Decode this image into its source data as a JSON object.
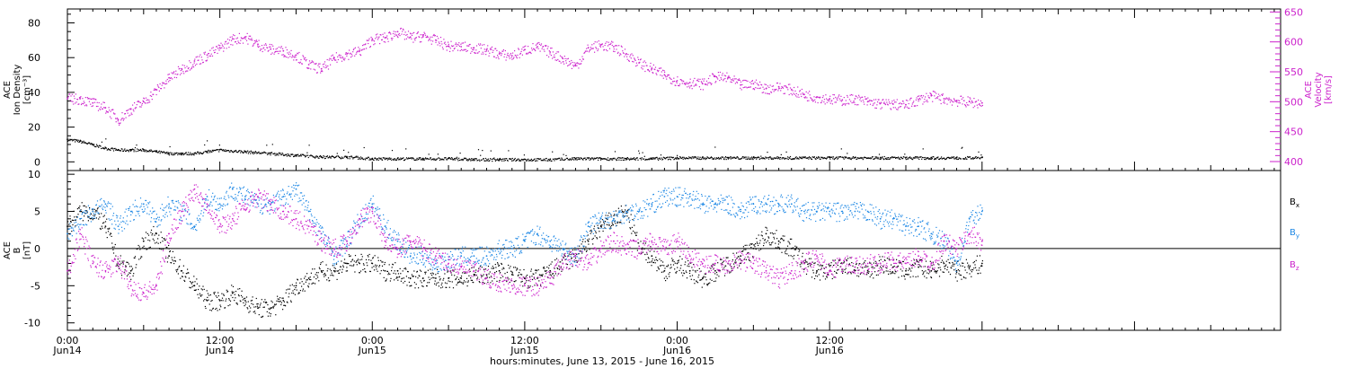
{
  "chart_data": [
    {
      "type": "scatter",
      "panel": "top",
      "ylabel_left_lines": [
        "ACE",
        "Ion Density",
        "[cm⁻³]"
      ],
      "ylabel_right_lines": [
        "ACE",
        "Velocity",
        "[km/s]"
      ],
      "ylim_left": [
        -5,
        88
      ],
      "ylim_right": [
        385,
        655
      ],
      "yticks_left": [
        "0",
        "20",
        "40",
        "60",
        "80"
      ],
      "yticks_right": [
        "400",
        "450",
        "500",
        "550",
        "600",
        "650"
      ],
      "grid": false,
      "series": [
        {
          "name": "",
          "axis": "left",
          "color": "#000000",
          "x": [
            0,
            1,
            2,
            3,
            4,
            5,
            6,
            7,
            8,
            9,
            10,
            11,
            12,
            14,
            16,
            18,
            20,
            22,
            24,
            26,
            28,
            30,
            32,
            34,
            36,
            38,
            40,
            42,
            44,
            46,
            48,
            50,
            52,
            54,
            56,
            58,
            60,
            62,
            64,
            66,
            68,
            70,
            72
          ],
          "y": [
            13,
            12,
            10,
            8,
            7,
            7,
            7,
            6,
            5,
            5,
            5,
            6,
            7,
            6,
            5,
            4,
            3,
            3,
            2,
            2,
            2,
            2,
            1.5,
            1.5,
            1.5,
            1.5,
            2,
            2,
            2,
            2,
            2.5,
            2.5,
            2.5,
            2.5,
            2.5,
            2.5,
            2.5,
            2.5,
            2.5,
            2.5,
            2.5,
            2.5,
            2.5
          ]
        },
        {
          "name": "",
          "axis": "right",
          "color": "#cc22cc",
          "x": [
            0,
            1,
            2,
            3,
            4,
            5,
            6,
            7,
            8,
            9,
            10,
            11,
            12,
            13,
            14,
            15,
            16,
            17,
            18,
            19,
            20,
            21,
            22,
            23,
            24,
            25,
            26,
            27,
            28,
            29,
            30,
            31,
            32,
            33,
            34,
            35,
            36,
            37,
            38,
            39,
            40,
            41,
            42,
            43,
            44,
            45,
            46,
            47,
            48,
            49,
            50,
            51,
            52,
            53,
            54,
            55,
            56,
            57,
            58,
            59,
            60,
            61,
            62,
            63,
            64,
            65,
            66,
            67,
            68,
            69,
            70,
            71,
            72
          ],
          "y": [
            505,
            505,
            498,
            490,
            470,
            488,
            500,
            520,
            540,
            555,
            568,
            578,
            590,
            605,
            608,
            596,
            588,
            585,
            578,
            562,
            555,
            573,
            580,
            585,
            605,
            607,
            617,
            608,
            610,
            603,
            593,
            592,
            590,
            587,
            580,
            577,
            587,
            592,
            583,
            572,
            560,
            590,
            595,
            592,
            580,
            565,
            555,
            545,
            535,
            532,
            530,
            542,
            540,
            528,
            530,
            522,
            525,
            520,
            512,
            508,
            505,
            503,
            505,
            500,
            497,
            496,
            495,
            504,
            510,
            505,
            502,
            500,
            498
          ]
        }
      ]
    },
    {
      "type": "scatter",
      "panel": "bottom",
      "ylabel_left_lines": [
        "ACE",
        "B",
        "[nT]"
      ],
      "ylim": [
        -11,
        10.5
      ],
      "yticks": [
        "-10",
        "-5",
        "0",
        "5",
        "10"
      ],
      "grid": false,
      "zero_line": true,
      "series": [
        {
          "name": "Bx",
          "color": "#000000",
          "x": [
            0,
            1,
            2,
            3,
            4,
            5,
            6,
            7,
            8,
            9,
            10,
            11,
            12,
            13,
            14,
            15,
            16,
            17,
            18,
            19,
            20,
            21,
            22,
            23,
            24,
            25,
            26,
            27,
            28,
            29,
            30,
            31,
            32,
            33,
            34,
            35,
            36,
            37,
            38,
            39,
            40,
            41,
            42,
            43,
            44,
            45,
            46,
            47,
            48,
            49,
            50,
            51,
            52,
            53,
            54,
            55,
            56,
            57,
            58,
            59,
            60,
            61,
            62,
            63,
            64,
            65,
            66,
            67,
            68,
            69,
            70,
            71,
            72
          ],
          "y": [
            3,
            5,
            5,
            3,
            -2,
            -3,
            1,
            2,
            -1,
            -3,
            -5,
            -7,
            -7,
            -6,
            -7,
            -8,
            -8,
            -7,
            -5,
            -4,
            -3,
            -3,
            -2,
            -2,
            -2,
            -3,
            -3,
            -4,
            -4,
            -4,
            -4,
            -4,
            -3.5,
            -3.5,
            -3,
            -3.5,
            -4,
            -4,
            -3,
            -2,
            -1,
            1,
            3,
            4,
            5,
            0,
            -1,
            -3,
            -2,
            -3,
            -4,
            -3,
            -2,
            -1,
            0,
            2,
            1,
            0,
            -2,
            -3,
            -3,
            -2,
            -2.5,
            -3,
            -2,
            -2.5,
            -3,
            -2.5,
            -3,
            -2,
            -3,
            -2.5,
            -2
          ]
        },
        {
          "name": "By",
          "color": "#1e88e5",
          "x": [
            0,
            1,
            2,
            3,
            4,
            5,
            6,
            7,
            8,
            9,
            10,
            11,
            12,
            13,
            14,
            15,
            16,
            17,
            18,
            19,
            20,
            21,
            22,
            23,
            24,
            25,
            26,
            27,
            28,
            29,
            30,
            31,
            32,
            33,
            34,
            35,
            36,
            37,
            38,
            39,
            40,
            41,
            42,
            43,
            44,
            45,
            46,
            47,
            48,
            49,
            50,
            51,
            52,
            53,
            54,
            55,
            56,
            57,
            58,
            59,
            60,
            61,
            62,
            63,
            64,
            65,
            66,
            67,
            68,
            69,
            70,
            71,
            72
          ],
          "y": [
            2,
            4,
            5,
            6,
            3,
            5,
            6,
            4,
            6,
            5,
            3,
            7,
            6,
            8,
            7,
            6,
            6,
            7,
            8,
            5,
            2,
            -1,
            1,
            4,
            6,
            3,
            1,
            -1,
            -1,
            -2,
            -1.5,
            -1,
            -1,
            -1,
            0,
            0,
            1,
            2,
            1,
            0,
            -1,
            3,
            4,
            4,
            5,
            5,
            6,
            7,
            7,
            7,
            6,
            6,
            6,
            5,
            6,
            6,
            6,
            6,
            5,
            5,
            5,
            5,
            5,
            5,
            4,
            4,
            3,
            3,
            2,
            1,
            -2,
            4,
            5
          ]
        },
        {
          "name": "Bz",
          "color": "#cc22cc",
          "x": [
            0,
            1,
            2,
            3,
            4,
            5,
            6,
            7,
            8,
            9,
            10,
            11,
            12,
            13,
            14,
            15,
            16,
            17,
            18,
            19,
            20,
            21,
            22,
            23,
            24,
            25,
            26,
            27,
            28,
            29,
            30,
            31,
            32,
            33,
            34,
            35,
            36,
            37,
            38,
            39,
            40,
            41,
            42,
            43,
            44,
            45,
            46,
            47,
            48,
            49,
            50,
            51,
            52,
            53,
            54,
            55,
            56,
            57,
            58,
            59,
            60,
            61,
            62,
            63,
            64,
            65,
            66,
            67,
            68,
            69,
            70,
            71,
            72
          ],
          "y": [
            -3,
            2,
            -2,
            -3,
            -2,
            -5,
            -6,
            -5,
            2,
            5,
            8,
            6,
            3,
            4,
            6,
            7,
            6,
            5,
            4,
            3,
            1,
            0,
            1,
            4,
            5,
            1,
            0,
            1,
            0,
            -1,
            -2,
            -2.5,
            -3,
            -4,
            -4.5,
            -5,
            -5,
            -5,
            -4,
            -2,
            -1,
            -2,
            0,
            1,
            0,
            0,
            1,
            0,
            1,
            -1,
            -2,
            -2,
            -2,
            -1.5,
            -2,
            -3,
            -4,
            -3,
            -2,
            -1,
            -3,
            -2,
            -2.5,
            -2,
            -2,
            -1.5,
            -2,
            -1,
            -2,
            1,
            0,
            2,
            1
          ]
        }
      ],
      "legend_position": "right",
      "legend": [
        {
          "base": "B",
          "sub": "x",
          "color": "#000000"
        },
        {
          "base": "B",
          "sub": "y",
          "color": "#1e88e5"
        },
        {
          "base": "B",
          "sub": "z",
          "color": "#cc22cc"
        }
      ]
    }
  ],
  "x_axis": {
    "range_hours": [
      0,
      95.5
    ],
    "ticks": [
      {
        "h": 0,
        "time": "0:00",
        "day": "Jun14"
      },
      {
        "h": 12,
        "time": "12:00",
        "day": "Jun14"
      },
      {
        "h": 24,
        "time": "0:00",
        "day": "Jun15"
      },
      {
        "h": 36,
        "time": "12:00",
        "day": "Jun15"
      },
      {
        "h": 48,
        "time": "0:00",
        "day": "Jun16"
      },
      {
        "h": 60,
        "time": "12:00",
        "day": "Jun16"
      }
    ],
    "label": "hours:minutes, June 13, 2015 - June 16, 2015"
  }
}
